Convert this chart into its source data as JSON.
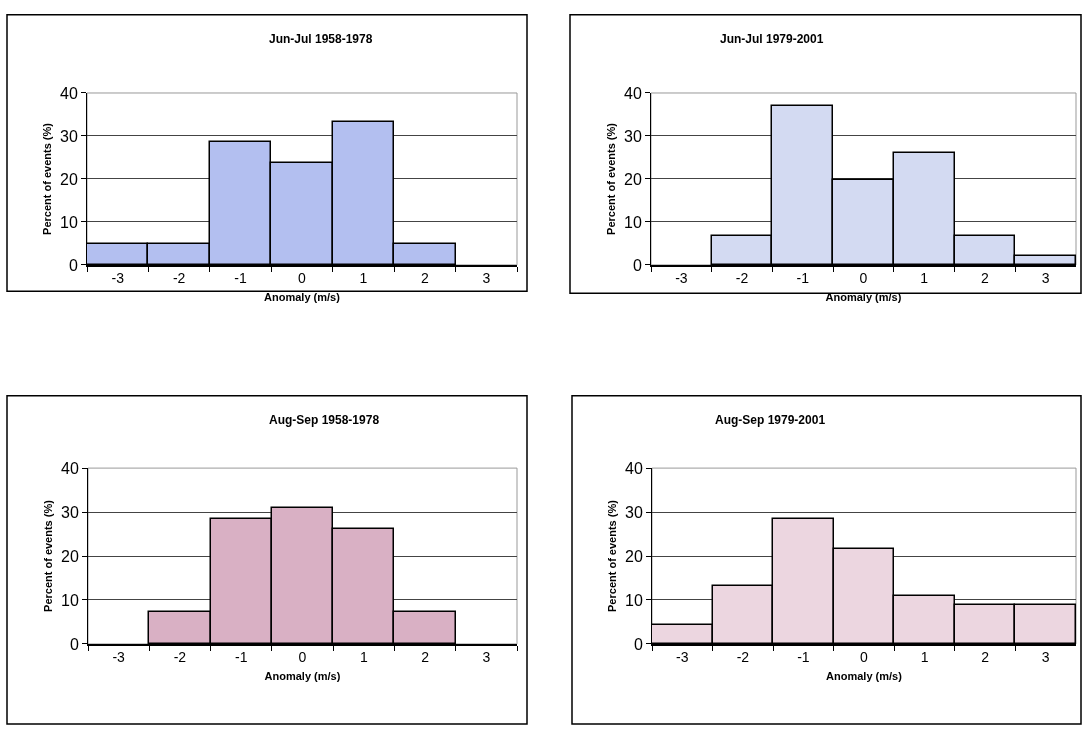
{
  "chart_data": [
    {
      "type": "bar",
      "title": "Jun-Jul 1958-1978",
      "xlabel": "Anomaly (m/s)",
      "ylabel": "Percent of events (%)",
      "categories": [
        "-3",
        "-2",
        "-1",
        "0",
        "1",
        "2",
        "3"
      ],
      "series": [
        {
          "color": "#b3bff0",
          "values": [
            4.8,
            4.8,
            28.6,
            23.8,
            33.3,
            4.8,
            null
          ]
        }
      ],
      "ylim": [
        0,
        40
      ],
      "yticks": [
        0,
        10,
        20,
        30,
        40
      ],
      "grid": "y"
    },
    {
      "type": "bar",
      "title": "Jun-Jul 1979-2001",
      "xlabel": "Anomaly (m/s)",
      "ylabel": "Percent of events (%)",
      "categories": [
        "-3",
        "-2",
        "-1",
        "0",
        "1",
        "2",
        "3"
      ],
      "series": [
        {
          "color": "#d3daf2",
          "values": [
            null,
            6.7,
            37.0,
            19.7,
            26.1,
            6.7,
            2.0
          ]
        }
      ],
      "ylim": [
        0,
        40
      ],
      "yticks": [
        0,
        10,
        20,
        30,
        40
      ],
      "grid": "y"
    },
    {
      "type": "bar",
      "title": "Aug-Sep 1958-1978",
      "xlabel": "Anomaly (m/s)",
      "ylabel": "Percent of events (%)",
      "categories": [
        "-3",
        "-2",
        "-1",
        "0",
        "1",
        "2",
        "3"
      ],
      "series": [
        {
          "color": "#d9b0c4",
          "values": [
            null,
            7.2,
            28.5,
            30.9,
            26.1,
            7.2,
            null
          ]
        }
      ],
      "ylim": [
        0,
        40
      ],
      "yticks": [
        0,
        10,
        20,
        30,
        40
      ],
      "grid": "y"
    },
    {
      "type": "bar",
      "title": "Aug-Sep 1979-2001",
      "xlabel": "Anomaly (m/s)",
      "ylabel": "Percent of events (%)",
      "categories": [
        "-3",
        "-2",
        "-1",
        "0",
        "1",
        "2",
        "3"
      ],
      "series": [
        {
          "color": "#ecd6e0",
          "values": [
            4.2,
            13.1,
            28.4,
            21.6,
            10.9,
            8.8,
            8.8
          ]
        }
      ],
      "ylim": [
        0,
        40
      ],
      "yticks": [
        0,
        10,
        20,
        30,
        40
      ],
      "grid": "y"
    }
  ]
}
